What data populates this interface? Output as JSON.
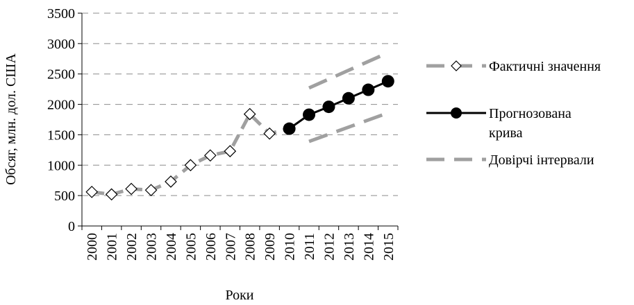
{
  "chart_data": {
    "type": "line",
    "xlabel": "Роки",
    "ylabel": "Обсяг, млн. дол. США",
    "ylim": [
      0,
      3500
    ],
    "yticks": [
      0,
      500,
      1000,
      1500,
      2000,
      2500,
      3000,
      3500
    ],
    "grid": "horizontal-dashed",
    "legend_position": "right",
    "categories": [
      "2000",
      "2001",
      "2002",
      "2003",
      "2004",
      "2005",
      "2006",
      "2007",
      "2008",
      "2009",
      "2010",
      "2011",
      "2012",
      "2013",
      "2014",
      "2015"
    ],
    "series": [
      {
        "name": "Фактичні значення",
        "style": "dashed-thick-gray-with-diamonds",
        "color": "#a0a0a0",
        "x": [
          "2000",
          "2001",
          "2002",
          "2003",
          "2004",
          "2005",
          "2006",
          "2007",
          "2008",
          "2009",
          "2010"
        ],
        "values": [
          560,
          520,
          610,
          590,
          730,
          1000,
          1160,
          1230,
          1840,
          1520,
          1600
        ]
      },
      {
        "name": "Прогнозована крива",
        "style": "solid-black-with-circles",
        "color": "#000000",
        "x": [
          "2010",
          "2011",
          "2012",
          "2013",
          "2014",
          "2015"
        ],
        "values": [
          1600,
          1830,
          1960,
          2100,
          2240,
          2380
        ]
      },
      {
        "name": "Довірчі інтервали",
        "style": "dashed-thick-gray",
        "color": "#a0a0a0",
        "x": [
          "2011",
          "2015"
        ],
        "upper": [
          2270,
          2850
        ],
        "lower": [
          1390,
          1860
        ]
      }
    ]
  }
}
